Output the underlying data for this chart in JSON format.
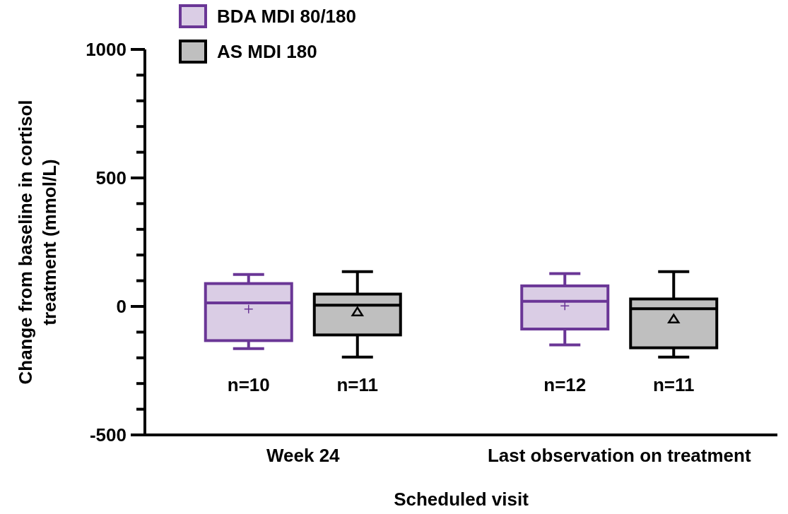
{
  "chart_data": {
    "type": "box",
    "ylabel": "Change from baseline in cortisol treatment (mmol/L)",
    "xlabel": "Scheduled visit",
    "categories": [
      "Week 24",
      "Last observation on treatment"
    ],
    "ylim": [
      -500,
      1000
    ],
    "yticks": [
      -500,
      {
        "value": -400,
        "label": null
      },
      {
        "value": -300,
        "label": null
      },
      {
        "value": -200,
        "label": null
      },
      {
        "value": -100,
        "label": null
      },
      0,
      {
        "value": 100,
        "label": null
      },
      {
        "value": 200,
        "label": null
      },
      {
        "value": 300,
        "label": null
      },
      {
        "value": 400,
        "label": null
      },
      500,
      {
        "value": 600,
        "label": null
      },
      {
        "value": 700,
        "label": null
      },
      {
        "value": 800,
        "label": null
      },
      {
        "value": 900,
        "label": null
      },
      1000
    ],
    "grid": false,
    "legend": "top left",
    "series": [
      {
        "name": "BDA MDI 80/180",
        "color": "#6a3696",
        "marker": "cross",
        "boxes": [
          {
            "low": -164,
            "q1": -133,
            "median": 14,
            "q3": 89,
            "high": 124,
            "mean": -10
          },
          {
            "low": -150,
            "q1": -88,
            "median": 20,
            "q3": 80,
            "high": 128,
            "mean": 2
          }
        ]
      },
      {
        "name": "AS MDI 180",
        "color": "#000000",
        "marker": "triangle",
        "boxes": [
          {
            "low": -197,
            "q1": -111,
            "median": 5,
            "q3": 48,
            "high": 135,
            "mean": -21
          },
          {
            "low": -197,
            "q1": -161,
            "median": -9,
            "q3": 29,
            "high": 135,
            "mean": -49
          }
        ]
      }
    ],
    "annotations": [
      "n=10",
      "n=11",
      "n=12",
      "n=11"
    ]
  }
}
